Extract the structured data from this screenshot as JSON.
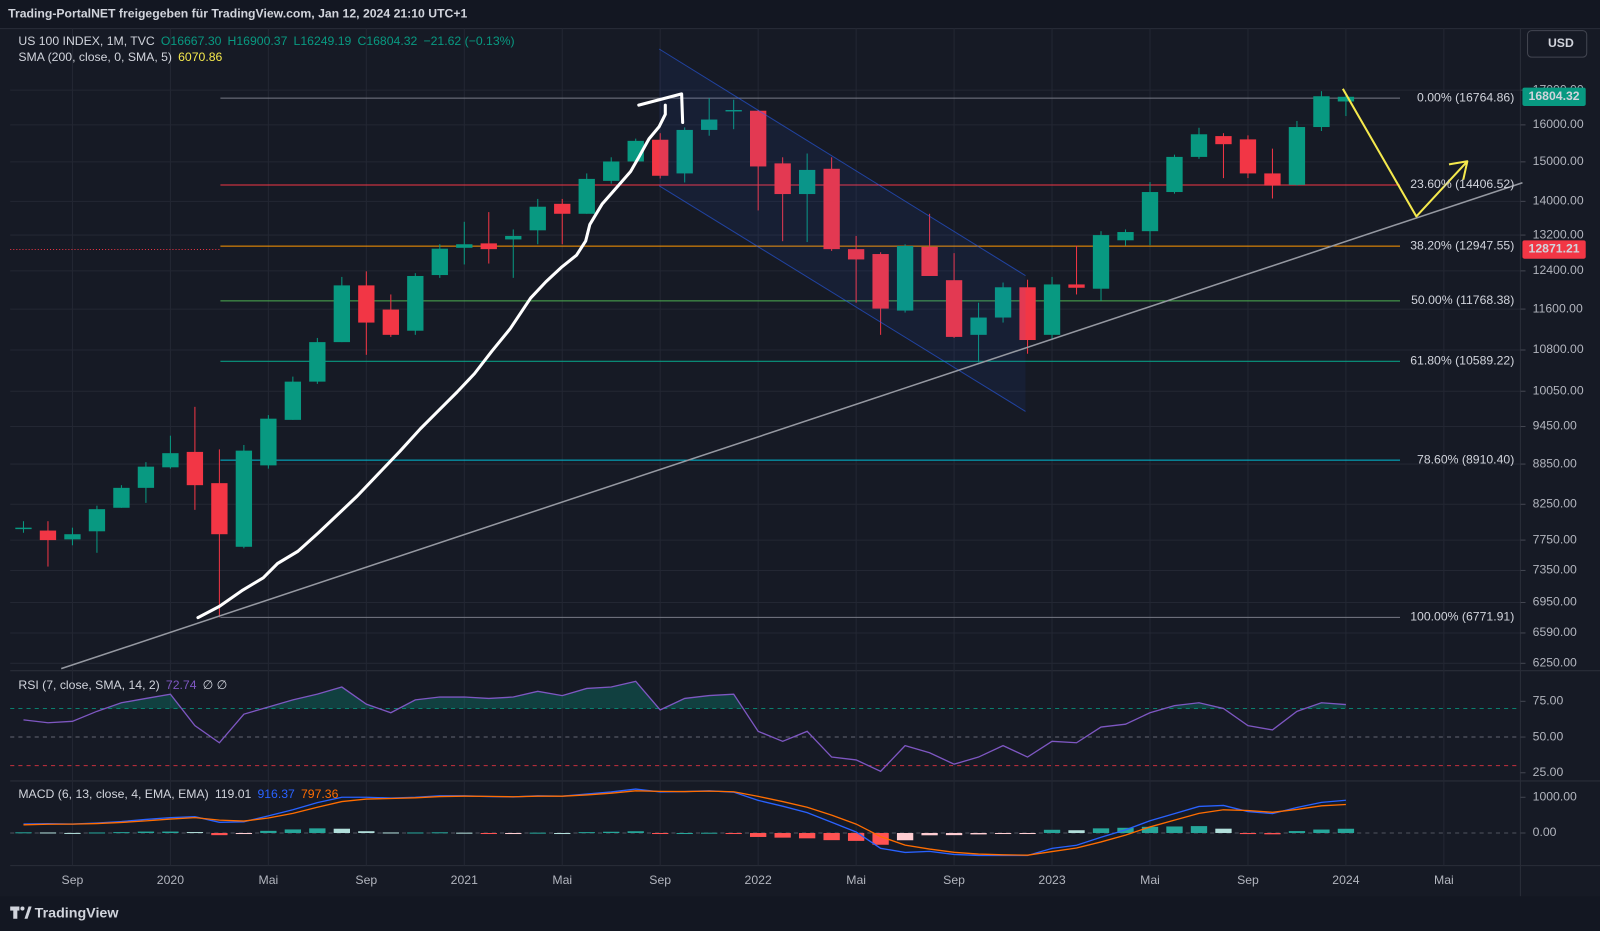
{
  "header": "Trading-PortalNET freigegeben für TradingView.com, Jan 12, 2024 21:10 UTC+1",
  "currency": "USD",
  "footer": "TradingView",
  "chart_data": [
    {
      "type": "candlestick",
      "title": "US 100 INDEX, 1M, TVC",
      "ohlc_labels": [
        "O16667.30",
        "H16900.37",
        "L16249.19",
        "C16804.32",
        "−21.62 (−0.13%)"
      ],
      "ohlc_color": "#089981",
      "indicator": "SMA (200, close, 0, SMA, 5)",
      "indicator_value": "6070.86",
      "indicator_color": "#f5e94d",
      "categories": [
        null,
        null,
        "Sep",
        null,
        null,
        null,
        "2020",
        null,
        null,
        null,
        "Mai",
        null,
        null,
        null,
        "Sep",
        null,
        null,
        null,
        "2021",
        null,
        null,
        null,
        "Mai",
        null,
        null,
        null,
        "Sep",
        null,
        null,
        null,
        "2022",
        null,
        null,
        null,
        "Mai",
        null,
        null,
        null,
        "Sep",
        null,
        null,
        null,
        "2023",
        null,
        null,
        null,
        "Mai",
        null,
        null,
        null,
        "Sep",
        null,
        null,
        null,
        "2024"
      ],
      "future_categories": [
        "Mai"
      ],
      "open": [
        7900,
        7880,
        7760,
        7870,
        8200,
        8490,
        8800,
        9040,
        8560,
        7660,
        8830,
        9560,
        10220,
        10950,
        12090,
        11590,
        11170,
        12310,
        12910,
        13010,
        13100,
        13310,
        13940,
        13700,
        14510,
        15010,
        15590,
        14700,
        15860,
        16380,
        16400,
        14960,
        14180,
        14820,
        12880,
        12770,
        11570,
        12930,
        12200,
        11090,
        11430,
        12050,
        11090,
        12110,
        12020,
        13080,
        13290,
        14230,
        15130,
        15690,
        15600,
        14700,
        14410,
        15940,
        16667.3
      ],
      "high": [
        8010,
        8010,
        7920,
        8230,
        8530,
        8880,
        9300,
        9780,
        9080,
        9150,
        9640,
        10310,
        11030,
        12270,
        12390,
        11900,
        12350,
        12990,
        13510,
        13740,
        13330,
        14060,
        14060,
        14700,
        15120,
        15620,
        15770,
        15930,
        16764.86,
        16720,
        16420,
        15120,
        15220,
        15120,
        13180,
        12810,
        12990,
        13700,
        12790,
        11730,
        12150,
        12210,
        12270,
        12960,
        13290,
        13330,
        14480,
        15190,
        15920,
        15770,
        15710,
        15350,
        16110,
        16970,
        16900.37
      ],
      "low": [
        7850,
        7400,
        7680,
        7580,
        8200,
        8270,
        8780,
        8170,
        6771.91,
        7640,
        8780,
        9560,
        10180,
        10950,
        10710,
        11050,
        11090,
        12250,
        12540,
        12560,
        12250,
        12990,
        12990,
        13700,
        14440,
        14960,
        14570,
        14470,
        15700,
        15880,
        13780,
        13060,
        13040,
        12840,
        11730,
        11090,
        11530,
        12290,
        11030,
        10570,
        11330,
        10730,
        10990,
        11900,
        11770,
        12960,
        12970,
        14190,
        15080,
        14580,
        14580,
        14070,
        14390,
        15830,
        16249.19
      ],
      "close": [
        7920,
        7750,
        7830,
        8180,
        8490,
        8810,
        9020,
        8530,
        7830,
        9060,
        9580,
        10220,
        10950,
        12090,
        11330,
        11090,
        12290,
        12890,
        12990,
        12880,
        13180,
        13870,
        13700,
        14560,
        15010,
        15560,
        14640,
        15860,
        16150,
        16420,
        14880,
        14180,
        14790,
        12880,
        12650,
        11610,
        12950,
        12290,
        11050,
        11430,
        12050,
        10990,
        12110,
        12040,
        13200,
        13270,
        14230,
        15130,
        15740,
        15470,
        14700,
        14390,
        15940,
        16820,
        16804.32
      ],
      "up_color": "#089981",
      "down_color": "#f23645",
      "log_scale": true,
      "grid": true,
      "ylim": [
        6170,
        17880
      ],
      "yticks": [
        {
          "value": 17000,
          "label": "17000.00"
        },
        {
          "value": 16000,
          "label": "16000.00"
        },
        {
          "value": 15000,
          "label": "15000.00"
        },
        {
          "value": 14000,
          "label": "14000.00"
        },
        {
          "value": 13200,
          "label": "13200.00"
        },
        {
          "value": 12400,
          "label": "12400.00"
        },
        {
          "value": 11600,
          "label": "11600.00"
        },
        {
          "value": 10800,
          "label": "10800.00"
        },
        {
          "value": 10050,
          "label": "10050.00"
        },
        {
          "value": 9450,
          "label": "9450.00"
        },
        {
          "value": 8850,
          "label": "8850.00"
        },
        {
          "value": 8250,
          "label": "8250.00"
        },
        {
          "value": 7750,
          "label": "7750.00"
        },
        {
          "value": 7350,
          "label": "7350.00"
        },
        {
          "value": 6950,
          "label": "6950.00"
        },
        {
          "value": 6590,
          "label": "6590.00"
        },
        {
          "value": 6250,
          "label": "6250.00"
        }
      ],
      "fib_levels": [
        {
          "value": 16764.86,
          "label": "0.00% (16764.86)",
          "color": "#787b86"
        },
        {
          "value": 14406.52,
          "label": "23.60% (14406.52)",
          "color": "#f23645"
        },
        {
          "value": 12947.55,
          "label": "38.20% (12947.55)",
          "color": "#ff9800"
        },
        {
          "value": 11768.38,
          "label": "50.00% (11768.38)",
          "color": "#4caf50"
        },
        {
          "value": 10589.22,
          "label": "61.80% (10589.22)",
          "color": "#089981"
        },
        {
          "value": 8910.4,
          "label": "78.60% (8910.40)",
          "color": "#00bcd4"
        },
        {
          "value": 6771.91,
          "label": "100.00% (6771.91)",
          "color": "#787b86"
        }
      ],
      "price_tags": [
        {
          "value": 16804.32,
          "label": "16804.32",
          "color": "#089981"
        },
        {
          "value": 12871.21,
          "label": "12871.21",
          "color": "#f23645",
          "line_style": "dotted"
        }
      ]
    },
    {
      "type": "line",
      "title": "RSI (7, close, SMA, 14, 2)",
      "value_label": "72.74",
      "extra_labels": "∅ ∅",
      "color": "#7e57c2",
      "values": [
        62,
        60,
        61,
        68,
        74,
        77,
        80,
        58,
        46,
        66,
        71,
        76,
        80,
        85,
        73,
        67,
        76,
        78,
        78,
        77,
        78,
        82,
        79,
        84,
        85,
        89,
        69,
        77,
        79,
        80,
        54,
        47,
        54,
        36,
        34,
        26,
        44,
        39,
        31,
        36,
        44,
        36,
        47,
        46,
        57,
        59,
        67,
        72,
        74,
        70,
        58,
        55,
        68,
        74,
        72.74
      ],
      "ylim": [
        20,
        94
      ],
      "yticks": [
        {
          "value": 75,
          "label": "75.00"
        },
        {
          "value": 50,
          "label": "50.00"
        },
        {
          "value": 25,
          "label": "25.00"
        }
      ],
      "levels": [
        {
          "value": 70,
          "color": "#089981"
        },
        {
          "value": 50,
          "color": "#787b86"
        },
        {
          "value": 30,
          "color": "#f23645"
        }
      ]
    },
    {
      "type": "macd",
      "title": "MACD (6, 13, close, 4, EMA, EMA)",
      "value_labels": [
        "119.01",
        "916.37",
        "797.36"
      ],
      "histogram": [
        20,
        15,
        2,
        15,
        25,
        40,
        40,
        27,
        -60,
        -21,
        60,
        100,
        130,
        120,
        50,
        15,
        15,
        20,
        10,
        -5,
        -5,
        10,
        0,
        25,
        35,
        49,
        -15,
        0,
        8,
        -12,
        -111,
        -130,
        -149,
        -200,
        -221,
        -329,
        -203,
        -64,
        -60,
        -39,
        -19,
        -9,
        90,
        77,
        130,
        146,
        173,
        183,
        193,
        121,
        -30,
        -37,
        54,
        97,
        119.01
      ],
      "histogram_colors": [
        "#26a69a",
        "#b2dfdb",
        "#ffcdd2",
        "#ff5252"
      ],
      "macd": [
        250,
        260,
        250,
        280,
        320,
        380,
        430,
        457,
        300,
        314,
        480,
        650,
        850,
        1000,
        1000,
        980,
        1000,
        1040,
        1040,
        1020,
        1010,
        1040,
        1030,
        1090,
        1150,
        1229,
        1150,
        1160,
        1180,
        1143,
        914,
        750,
        571,
        300,
        29,
        -429,
        -543,
        -514,
        -600,
        -629,
        -629,
        -629,
        -430,
        -343,
        -120,
        86,
        343,
        543,
        743,
        771,
        600,
        543,
        714,
        857,
        916.37
      ],
      "macd_color": "#2962ff",
      "signal": [
        230,
        245,
        248,
        265,
        295,
        340,
        390,
        430,
        360,
        335,
        420,
        550,
        720,
        880,
        950,
        965,
        985,
        1020,
        1030,
        1025,
        1015,
        1030,
        1030,
        1065,
        1115,
        1180,
        1165,
        1160,
        1172,
        1155,
        1025,
        880,
        720,
        500,
        250,
        -100,
        -340,
        -450,
        -540,
        -590,
        -610,
        -620,
        -520,
        -420,
        -250,
        -60,
        170,
        360,
        550,
        650,
        630,
        580,
        660,
        760,
        797.36
      ],
      "signal_color": "#ff6d00",
      "zero_line": true,
      "ylim": [
        -900,
        1400
      ],
      "yticks": [
        {
          "value": 1000,
          "label": "1000.00"
        },
        {
          "value": 0,
          "label": "0.00"
        }
      ]
    }
  ]
}
